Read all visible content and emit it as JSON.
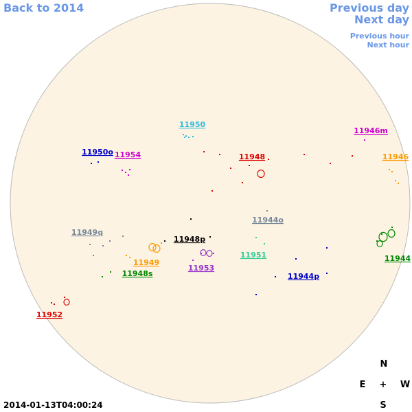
{
  "nav": {
    "back": "Back to 2014",
    "previous_day": "Previous day",
    "next_day": "Next day",
    "previous_hour": "Previous hour",
    "next_hour": "Next hour"
  },
  "regions": [
    {
      "label": "11950",
      "color": "#33bbdd"
    },
    {
      "label": "11946m",
      "color": "#cc00cc"
    },
    {
      "label": "11950o",
      "color": "#0000cc"
    },
    {
      "label": "11954",
      "color": "#cc00cc"
    },
    {
      "label": "11948",
      "color": "#dd0000"
    },
    {
      "label": "11946",
      "color": "#ff9900"
    },
    {
      "label": "11944o",
      "color": "#778899"
    },
    {
      "label": "11949q",
      "color": "#778899"
    },
    {
      "label": "11948p",
      "color": "#000000"
    },
    {
      "label": "11951",
      "color": "#33cc99"
    },
    {
      "label": "11944",
      "color": "#008800"
    },
    {
      "label": "11949",
      "color": "#ff9900"
    },
    {
      "label": "11948s",
      "color": "#008800"
    },
    {
      "label": "11953",
      "color": "#9933cc"
    },
    {
      "label": "11944p",
      "color": "#0000cc"
    },
    {
      "label": "11952",
      "color": "#dd0000"
    }
  ],
  "compass": {
    "north": "N",
    "east": "E",
    "center": "+",
    "west": "W",
    "south": "S"
  },
  "timestamp": "2014-01-13T04:00:24"
}
